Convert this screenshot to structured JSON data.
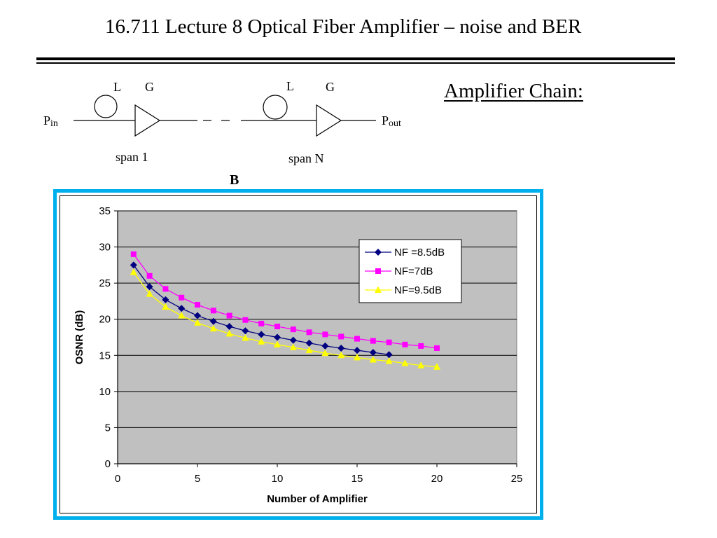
{
  "header": {
    "title": "16.711 Lecture 8 Optical Fiber Amplifier – noise and BER",
    "subtitle": "Amplifier Chain:"
  },
  "diagram": {
    "p_in": "P",
    "p_in_sub": "in",
    "p_out": "P",
    "p_out_sub": "out",
    "stage1": {
      "loss_label": "L",
      "gain_label": "G",
      "span_label": "span 1"
    },
    "stageN": {
      "loss_label": "L",
      "gain_label": "G",
      "span_label": "span N"
    }
  },
  "figure_label": "B",
  "colors": {
    "frame_border": "#00b0ec",
    "plot_background": "#c0c0c0",
    "series_nf85": "#000080",
    "series_nf7": "#ff00ff",
    "series_nf95": "#ffff00"
  },
  "chart_data": {
    "type": "line",
    "xlabel": "Number of Amplifier",
    "ylabel": "OSNR (dB)",
    "xlim": [
      0,
      25
    ],
    "ylim": [
      0,
      35
    ],
    "x_ticks": [
      0,
      5,
      10,
      15,
      20,
      25
    ],
    "y_ticks": [
      0,
      5,
      10,
      15,
      20,
      25,
      30,
      35
    ],
    "grid": "horizontal",
    "legend_position": "top-right",
    "series": [
      {
        "name": "NF =8.5dB",
        "marker": "diamond",
        "color": "#000080",
        "x": [
          1,
          2,
          3,
          4,
          5,
          6,
          7,
          8,
          9,
          10,
          11,
          12,
          13,
          14,
          15,
          16,
          17
        ],
        "y": [
          27.5,
          24.5,
          22.7,
          21.5,
          20.5,
          19.7,
          19.0,
          18.4,
          17.9,
          17.5,
          17.1,
          16.7,
          16.3,
          16.0,
          15.7,
          15.4,
          15.1
        ]
      },
      {
        "name": "NF=7dB",
        "marker": "square",
        "color": "#ff00ff",
        "x": [
          1,
          2,
          3,
          4,
          5,
          6,
          7,
          8,
          9,
          10,
          11,
          12,
          13,
          14,
          15,
          16,
          17,
          18,
          19,
          20
        ],
        "y": [
          29.0,
          26.0,
          24.2,
          23.0,
          22.0,
          21.2,
          20.5,
          19.9,
          19.4,
          19.0,
          18.6,
          18.2,
          17.9,
          17.6,
          17.3,
          17.0,
          16.8,
          16.5,
          16.3,
          16.0
        ]
      },
      {
        "name": "NF=9.5dB",
        "marker": "triangle",
        "color": "#ffff00",
        "x": [
          1,
          2,
          3,
          4,
          5,
          6,
          7,
          8,
          9,
          10,
          11,
          12,
          13,
          14,
          15,
          16,
          17,
          18,
          19,
          20
        ],
        "y": [
          26.5,
          23.5,
          21.7,
          20.5,
          19.5,
          18.7,
          18.0,
          17.4,
          16.9,
          16.5,
          16.1,
          15.7,
          15.3,
          15.0,
          14.7,
          14.4,
          14.2,
          13.9,
          13.6,
          13.4
        ]
      }
    ]
  }
}
